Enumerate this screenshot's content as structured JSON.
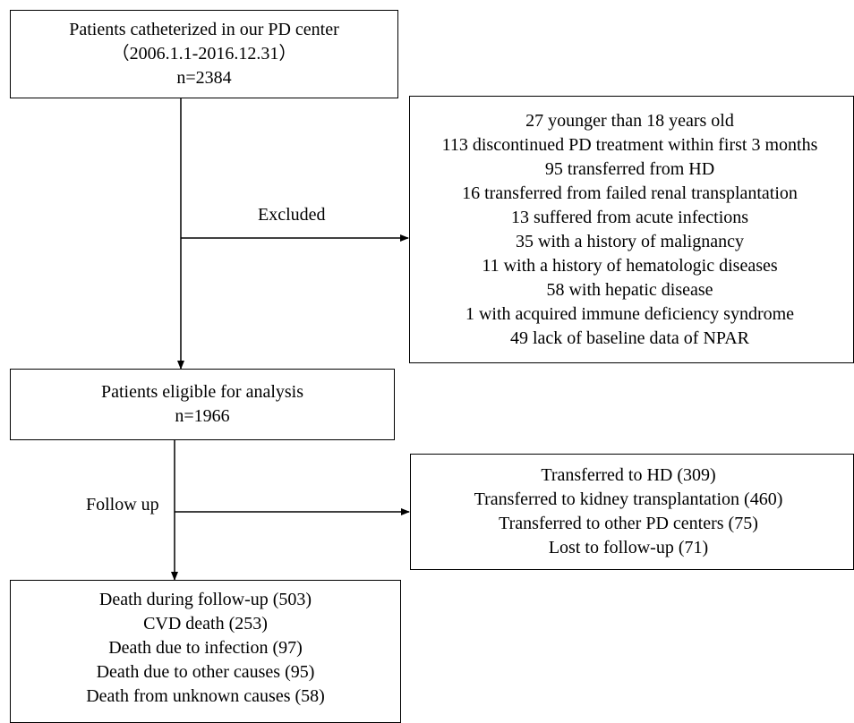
{
  "boxes": {
    "catheterized": {
      "lines": [
        "Patients catheterized in our PD center",
        "（2006.1.1-2016.12.31）",
        "n=2384"
      ]
    },
    "excluded_reasons": {
      "lines": [
        "27 younger than 18 years old",
        "113 discontinued PD treatment within first 3 months",
        "95 transferred from HD",
        "16 transferred from failed renal transplantation",
        "13 suffered from acute infections",
        "35 with a history of malignancy",
        "11 with a history of hematologic diseases",
        "58 with hepatic disease",
        "1 with acquired immune deficiency syndrome",
        "49 lack of baseline data of NPAR"
      ]
    },
    "eligible": {
      "lines": [
        "Patients eligible for analysis",
        "n=1966"
      ]
    },
    "transferred": {
      "lines": [
        "Transferred to HD (309)",
        "Transferred to kidney transplantation (460)",
        "Transferred to other PD centers (75)",
        "Lost to follow-up (71)"
      ]
    },
    "deaths": {
      "lines": [
        "Death during follow-up (503)",
        "CVD death (253)",
        "Death due to infection (97)",
        "Death due to other causes (95)",
        "Death from unknown causes (58)"
      ]
    }
  },
  "labels": {
    "excluded": "Excluded",
    "follow_up": "Follow up"
  }
}
